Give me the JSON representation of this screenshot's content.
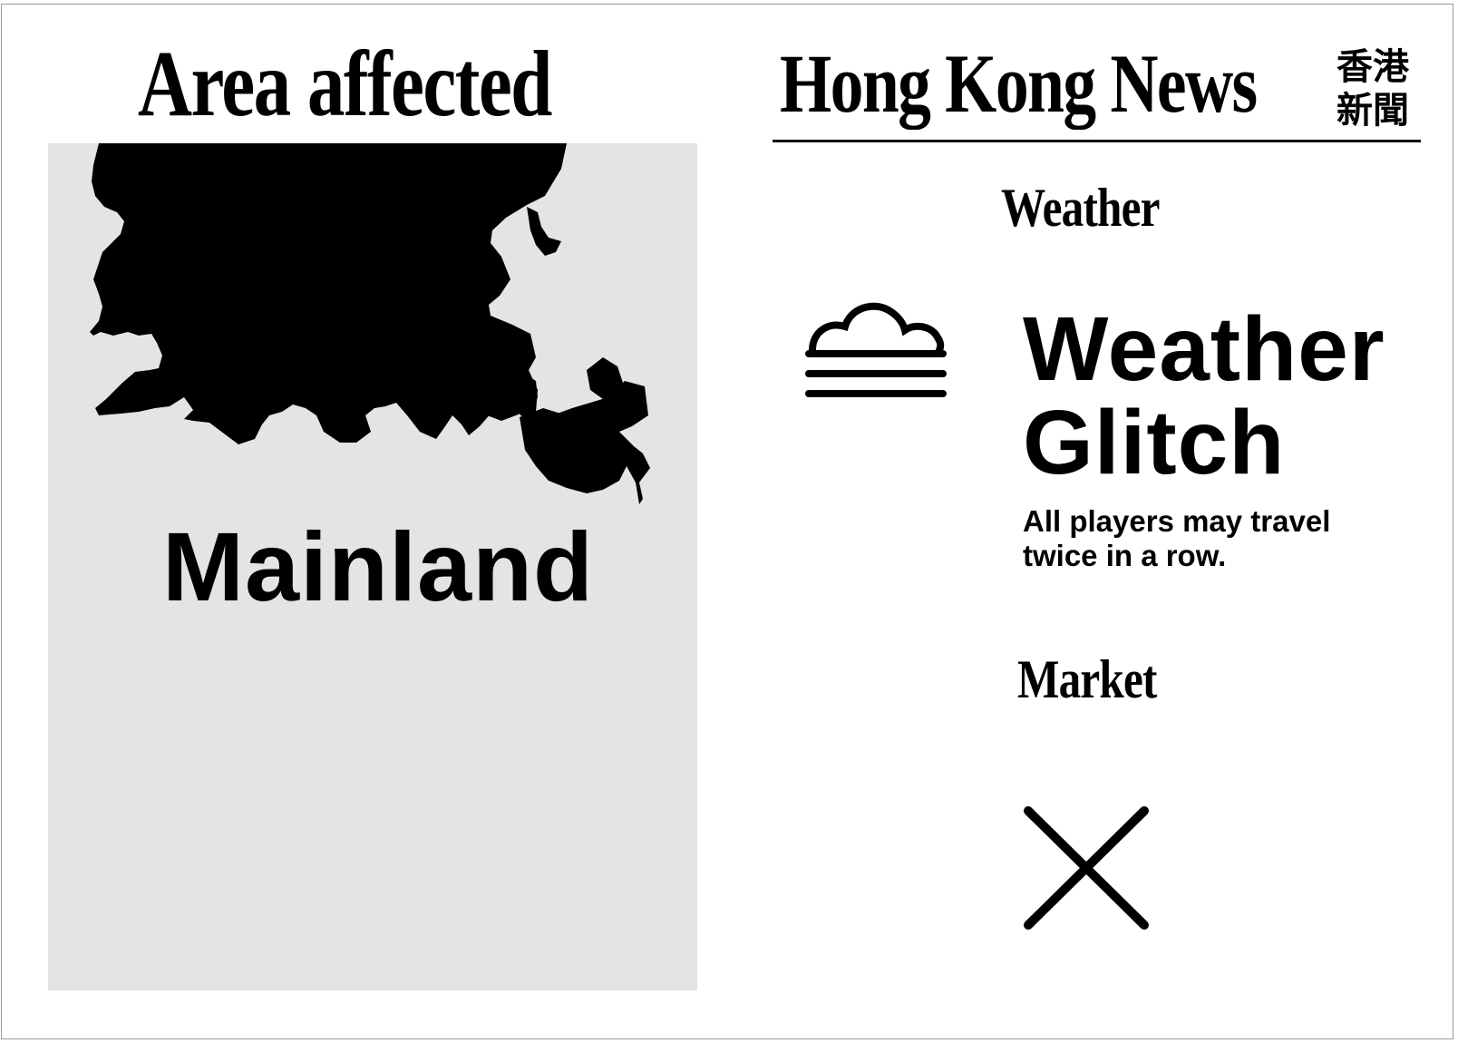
{
  "area": {
    "heading": "Area affected",
    "name": "Mainland",
    "map_icon": "hong-kong-map-silhouette"
  },
  "newspaper": {
    "title": "Hong Kong News",
    "title_chinese": "香港\n新聞"
  },
  "weather": {
    "heading": "Weather",
    "icon": "fog-cloud-icon",
    "event_title_line1": "Weather",
    "event_title_line2": "Glitch",
    "description": "All players may travel twice in a row."
  },
  "market": {
    "heading": "Market",
    "icon": "x-close-icon"
  },
  "colors": {
    "ink": "#000000",
    "panel": "#e4e4e4",
    "background": "#ffffff"
  }
}
